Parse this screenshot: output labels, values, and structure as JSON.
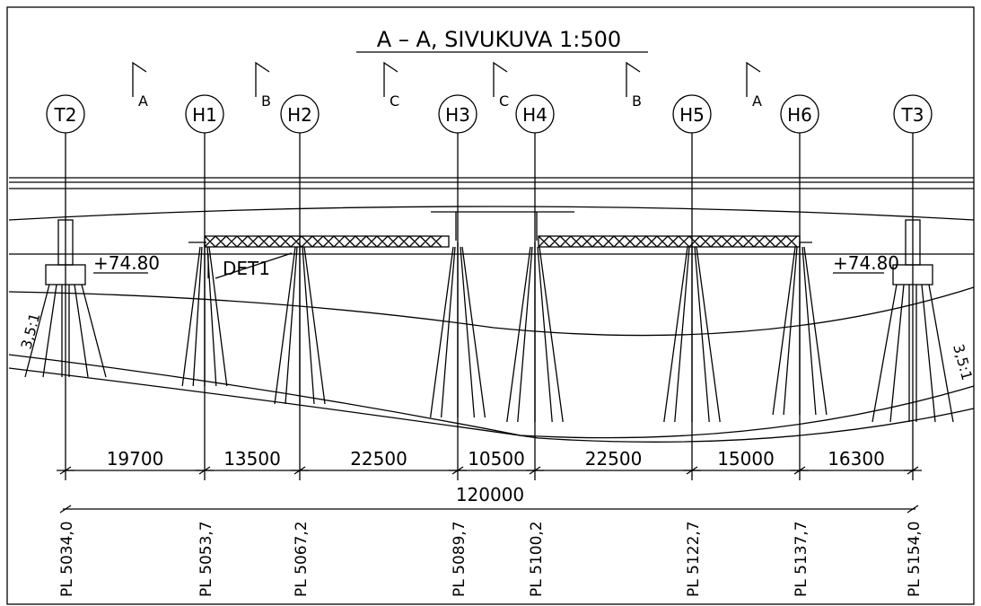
{
  "title": "A – A, SIVUKUVA  1:500",
  "section_marks": [
    "A",
    "B",
    "C",
    "C",
    "B",
    "A"
  ],
  "supports": [
    {
      "label": "T2",
      "chainage": "PL 5034,0"
    },
    {
      "label": "H1",
      "chainage": "PL 5053,7"
    },
    {
      "label": "H2",
      "chainage": "PL 5067,2"
    },
    {
      "label": "H3",
      "chainage": "PL 5089,7"
    },
    {
      "label": "H4",
      "chainage": "PL 5100,2"
    },
    {
      "label": "H5",
      "chainage": "PL 5122,7"
    },
    {
      "label": "H6",
      "chainage": "PL 5137,7"
    },
    {
      "label": "T3",
      "chainage": "PL 5154,0"
    }
  ],
  "elevations": [
    "+74.80",
    "+74.80"
  ],
  "detail": "DET1",
  "spans": [
    "19700",
    "13500",
    "22500",
    "10500",
    "22500",
    "15000",
    "16300"
  ],
  "total": "120000",
  "slopes": [
    "3,5:1",
    "3,5:1"
  ]
}
